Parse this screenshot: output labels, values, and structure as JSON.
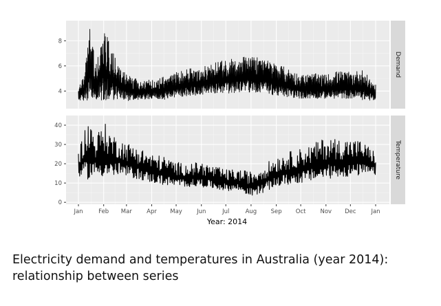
{
  "caption": {
    "line1": "Electricity demand and temperatures in Australia (year 2014):",
    "line2": "relationship between series"
  },
  "chart_data": {
    "type": "line",
    "xlabel": "Year: 2014",
    "x_ticks": [
      "Jan",
      "Feb",
      "Mar",
      "Apr",
      "May",
      "Jun",
      "Jul",
      "Aug",
      "Sep",
      "Oct",
      "Nov",
      "Dec",
      "Jan"
    ],
    "x_unit": "months of 2014 (Jan 2014 to Jan 2015)",
    "x_range": [
      "2014-01-01",
      "2015-01-01"
    ],
    "grid": true,
    "panels": [
      {
        "strip_label": "Demand",
        "y_ticks": [
          4,
          6,
          8
        ],
        "ylim": [
          2.6,
          9.6
        ],
        "series": [
          {
            "resolution": "daily envelope of half-hourly demand",
            "dates": [
              "2014-01-01",
              "2014-01-08",
              "2014-01-15",
              "2014-01-22",
              "2014-02-01",
              "2014-02-10",
              "2014-02-20",
              "2014-03-01",
              "2014-03-15",
              "2014-04-01",
              "2014-04-15",
              "2014-05-01",
              "2014-05-15",
              "2014-06-01",
              "2014-06-15",
              "2014-07-01",
              "2014-07-15",
              "2014-08-01",
              "2014-08-15",
              "2014-09-01",
              "2014-09-15",
              "2014-10-01",
              "2014-10-15",
              "2014-11-01",
              "2014-11-15",
              "2014-12-01",
              "2014-12-15",
              "2015-01-01"
            ],
            "upper": [
              4.3,
              5.4,
              9.3,
              6.0,
              9.2,
              7.4,
              6.0,
              5.3,
              4.9,
              4.9,
              5.2,
              5.5,
              5.8,
              5.9,
              6.2,
              6.5,
              6.7,
              6.8,
              6.6,
              6.2,
              5.8,
              5.3,
              5.4,
              5.3,
              5.6,
              5.5,
              5.7,
              4.5
            ],
            "lower": [
              3.2,
              3.2,
              3.3,
              3.3,
              3.2,
              3.3,
              3.3,
              3.2,
              3.3,
              3.4,
              3.3,
              3.5,
              3.6,
              3.7,
              3.8,
              3.8,
              3.9,
              3.9,
              3.9,
              3.6,
              3.5,
              3.4,
              3.4,
              3.4,
              3.4,
              3.4,
              3.3,
              3.2
            ]
          }
        ]
      },
      {
        "strip_label": "Temperature",
        "y_ticks": [
          0,
          10,
          20,
          30,
          40
        ],
        "ylim": [
          -1,
          45
        ],
        "series": [
          {
            "resolution": "daily envelope of half-hourly temperature",
            "dates": [
              "2014-01-01",
              "2014-01-08",
              "2014-01-15",
              "2014-01-22",
              "2014-02-01",
              "2014-02-10",
              "2014-02-20",
              "2014-03-01",
              "2014-03-15",
              "2014-04-01",
              "2014-04-15",
              "2014-05-01",
              "2014-05-15",
              "2014-06-01",
              "2014-06-15",
              "2014-07-01",
              "2014-07-15",
              "2014-08-01",
              "2014-08-15",
              "2014-09-01",
              "2014-09-15",
              "2014-10-01",
              "2014-10-15",
              "2014-11-01",
              "2014-11-15",
              "2014-12-01",
              "2014-12-15",
              "2015-01-01"
            ],
            "upper": [
              26,
              38,
              43,
              34,
              42,
              36,
              33,
              31,
              29,
              25,
              24,
              21,
              20,
              21,
              19,
              17,
              17,
              16,
              19,
              24,
              26,
              28,
              30,
              34,
              33,
              33,
              32,
              26
            ],
            "lower": [
              13,
              12,
              12,
              14,
              13,
              13,
              14,
              13,
              12,
              10,
              9,
              8,
              8,
              8,
              7,
              6,
              6,
              3,
              5,
              8,
              9,
              10,
              11,
              12,
              13,
              13,
              14,
              14
            ]
          }
        ]
      }
    ]
  }
}
